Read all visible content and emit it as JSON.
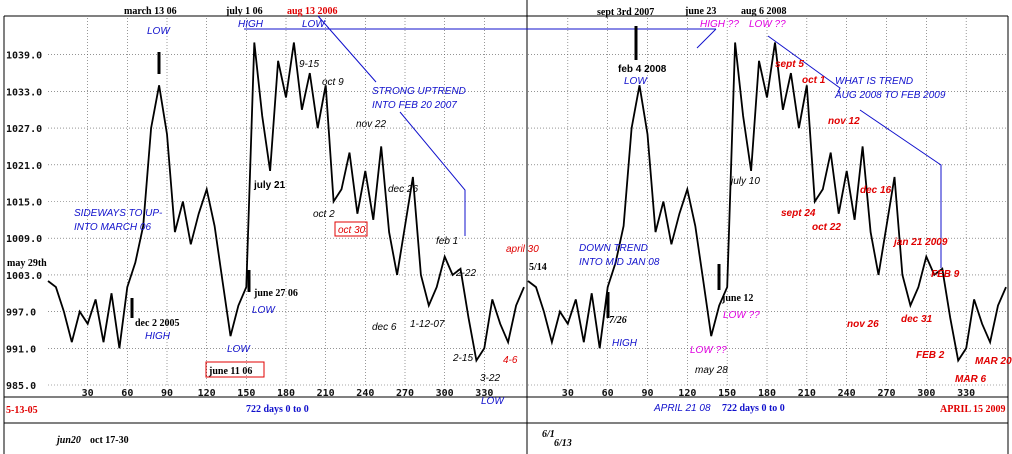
{
  "chart_data": [
    {
      "type": "line",
      "ylim": [
        985,
        1045
      ],
      "xlim": [
        0,
        360
      ],
      "yticks": [
        985.0,
        991.0,
        997.0,
        1003.0,
        1009.0,
        1015.0,
        1021.0,
        1027.0,
        1033.0,
        1039.0
      ],
      "ytick_labels": [
        "985.0",
        "991.0",
        "997.0",
        "1003.0",
        "1009.0",
        "1015.0",
        "1021.0",
        "1027.0",
        "1033.0",
        "1039.0"
      ],
      "xticks": [
        30,
        60,
        90,
        120,
        150,
        180,
        210,
        240,
        270,
        300,
        330
      ],
      "xtick_labels": [
        "30",
        "60",
        "90",
        "120",
        "150",
        "180",
        "210",
        "240",
        "270",
        "300",
        "330"
      ],
      "grid": true,
      "series": [
        {
          "x": [
            0,
            6,
            12,
            18,
            24,
            30,
            36,
            42,
            48,
            54,
            60,
            66,
            72,
            78,
            84,
            90,
            96,
            102,
            108,
            114,
            120,
            126,
            132,
            138,
            144,
            150,
            156,
            162,
            168,
            174,
            180,
            186,
            192,
            198,
            204,
            210,
            216,
            222,
            228,
            234,
            240,
            246,
            252,
            258,
            264,
            270,
            276,
            282,
            288,
            294,
            300,
            306,
            312,
            318,
            324,
            330,
            336,
            342,
            348,
            354,
            360
          ],
          "y": [
            1002,
            1001,
            997,
            992,
            997,
            995,
            999,
            992,
            1000,
            991,
            1001,
            1005,
            1011,
            1027,
            1034,
            1026,
            1010,
            1015,
            1008,
            1013,
            1017,
            1011,
            1002,
            993,
            998,
            1001,
            1041,
            1029,
            1020,
            1038,
            1032,
            1041,
            1030,
            1036,
            1027,
            1034,
            1015,
            1017,
            1023,
            1013,
            1020,
            1012,
            1024,
            1010,
            1003,
            1011,
            1019,
            1003,
            998,
            1001,
            1006,
            1003,
            1004,
            996,
            989,
            991,
            999,
            995,
            992,
            998,
            1001
          ]
        }
      ]
    },
    {
      "type": "line",
      "ylim": [
        985,
        1045
      ],
      "xlim": [
        0,
        360
      ],
      "xticks": [
        30,
        60,
        90,
        120,
        150,
        180,
        210,
        240,
        270,
        300,
        330
      ],
      "xtick_labels": [
        "30",
        "60",
        "90",
        "120",
        "150",
        "180",
        "210",
        "240",
        "270",
        "300",
        "330"
      ],
      "grid": true,
      "series": [
        {
          "x": [
            0,
            6,
            12,
            18,
            24,
            30,
            36,
            42,
            48,
            54,
            60,
            66,
            72,
            78,
            84,
            90,
            96,
            102,
            108,
            114,
            120,
            126,
            132,
            138,
            144,
            150,
            156,
            162,
            168,
            174,
            180,
            186,
            192,
            198,
            204,
            210,
            216,
            222,
            228,
            234,
            240,
            246,
            252,
            258,
            264,
            270,
            276,
            282,
            288,
            294,
            300,
            306,
            312,
            318,
            324,
            330,
            336,
            342,
            348,
            354,
            360
          ],
          "y": [
            1002,
            1001,
            997,
            992,
            997,
            995,
            999,
            992,
            1000,
            991,
            1001,
            1005,
            1011,
            1027,
            1034,
            1026,
            1010,
            1015,
            1008,
            1013,
            1017,
            1011,
            1002,
            993,
            998,
            1001,
            1041,
            1029,
            1020,
            1038,
            1032,
            1041,
            1030,
            1036,
            1027,
            1034,
            1015,
            1017,
            1023,
            1013,
            1020,
            1012,
            1024,
            1010,
            1003,
            1011,
            1019,
            1003,
            998,
            1001,
            1006,
            1003,
            1004,
            996,
            989,
            991,
            999,
            995,
            992,
            998,
            1001
          ]
        }
      ]
    }
  ],
  "annotations": {
    "march_13_06": "march 13 06",
    "low_1": "LOW",
    "july_1_06": "july 1 06",
    "high_1": "HIGH",
    "aug_13_2006": "aug 13 2006",
    "low_2": "LOW",
    "sept_3rd_2007": "sept 3rd 2007",
    "june_23": "june 23",
    "high_qq": "HIGH ??",
    "aug_6_2008": "aug 6 2008",
    "low_qq_1": "LOW ??",
    "label_9_15": "9-15",
    "oct_9": "oct 9",
    "strong_uptrend_1": "STRONG UPTREND",
    "strong_uptrend_2": "INTO FEB 20 2007",
    "nov_22": "nov 22",
    "july_21": "july 21",
    "oct_2": "oct 2",
    "oct_30": "oct 30",
    "dec_26": "dec 26",
    "feb_1": "feb 1",
    "label_2_22": "2-22",
    "dec_6": "dec 6",
    "label_1_12_07": "1-12-07",
    "label_2_15": "2-15",
    "label_3_22": "3-22",
    "label_4_6": "4-6",
    "low_3": "LOW",
    "sideways_1": "SIDEWAYS TO UP-",
    "sideways_2": "INTO MARCH 06",
    "may_29th": "may 29th",
    "dec_2_2005": "dec 2 2005",
    "high_2": "HIGH",
    "june_27_06": "june 27 06",
    "low_4": "LOW",
    "low_5": "LOW",
    "june_11_06": "june 11 06",
    "label_5_13_05": "5-13-05",
    "days_1": "722 days 0 to 0",
    "jun20": "jun20",
    "oct_17_30": "oct 17-30",
    "april_30": "april 30",
    "feb_4_2008": "feb 4 2008",
    "low_6": "LOW",
    "sept_5": "sept 5",
    "oct_1": "oct 1",
    "what_trend_1": "WHAT IS TREND",
    "what_trend_2": "AUG 2008 TO FEB 2009",
    "nov_12": "nov 12",
    "july_10": "july 10",
    "dec_16": "dec 16",
    "sept_24": "sept 24",
    "oct_22": "oct 22",
    "jan_21_2009": "jan 21 2009",
    "feb_9": "FEB 9",
    "label_5_14": "5/14",
    "down_trend_1": "DOWN TREND",
    "down_trend_2": "INTO MID JAN 08",
    "june_12": "june 12",
    "label_7_26": "7/26",
    "low_qq_2": "LOW ??",
    "high_3": "HIGH",
    "low_qq_3": "LOW ??",
    "may_28": "may 28",
    "nov_26": "nov 26",
    "dec_31": "dec 31",
    "feb_2": "FEB 2",
    "mar_20": "MAR 20",
    "mar_6": "MAR 6",
    "april_21_08": "APRIL 21 08",
    "days_2": "722 days 0 to 0",
    "april_15_2009": "APRIL 15 2009",
    "label_6_1": "6/1",
    "label_6_13": "6/13"
  },
  "colors": {
    "black": "#000000",
    "blue": "#1010cc",
    "red": "#e00000",
    "magenta": "#e000e0",
    "grid": "#555555"
  }
}
